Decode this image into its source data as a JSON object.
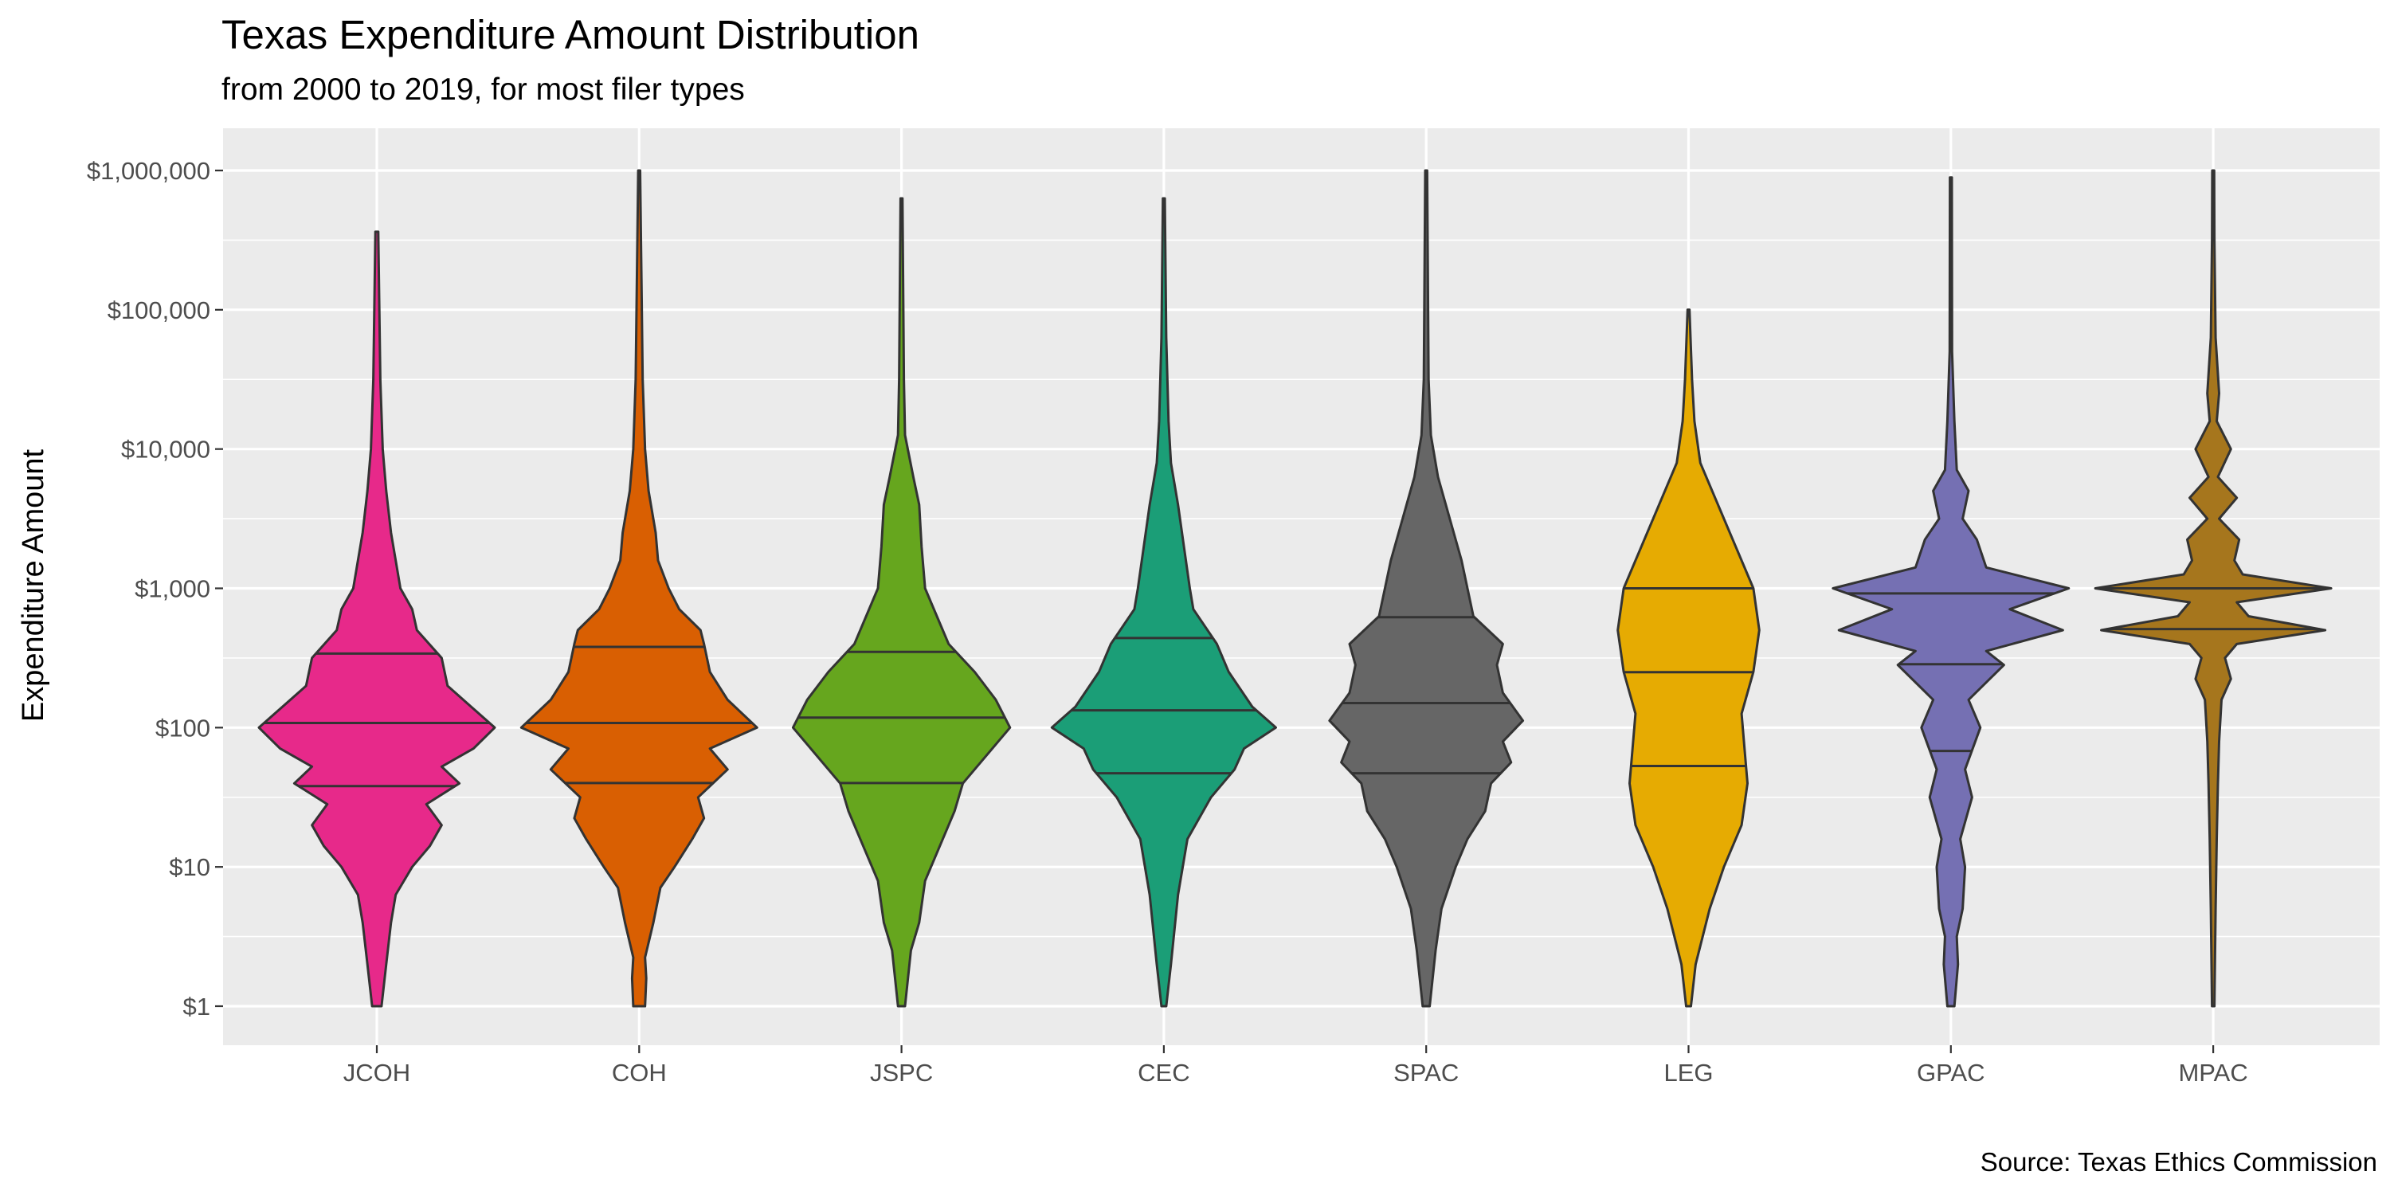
{
  "chart_data": {
    "type": "violin",
    "title": "Texas Expenditure Amount Distribution",
    "subtitle": "from 2000 to 2019, for most filer types",
    "caption": "Source: Texas Ethics Commission",
    "ylabel": "Expenditure Amount",
    "xlabel": "",
    "y_scale": "log10",
    "ylim": [
      0.5,
      2000000
    ],
    "y_ticks": [
      1,
      10,
      100,
      1000,
      10000,
      100000,
      1000000
    ],
    "y_tick_labels": [
      "$1",
      "$10",
      "$100",
      "$1,000",
      "$10,000",
      "$100,000",
      "$1,000,000"
    ],
    "grid": true,
    "legend": "none",
    "categories": [
      "JCOH",
      "COH",
      "JSPC",
      "CEC",
      "SPAC",
      "LEG",
      "GPAC",
      "MPAC"
    ],
    "series": [
      {
        "category": "JCOH",
        "color": "#E7298A",
        "min": 1,
        "max": 360000,
        "q1": 38,
        "median": 108,
        "q3": 340,
        "shape": [
          [
            0,
            0.04
          ],
          [
            0.3,
            0.08
          ],
          [
            0.6,
            0.12
          ],
          [
            0.8,
            0.16
          ],
          [
            1.0,
            0.3
          ],
          [
            1.15,
            0.45
          ],
          [
            1.3,
            0.55
          ],
          [
            1.45,
            0.42
          ],
          [
            1.6,
            0.7
          ],
          [
            1.72,
            0.55
          ],
          [
            1.85,
            0.82
          ],
          [
            2.0,
            1.0
          ],
          [
            2.15,
            0.8
          ],
          [
            2.3,
            0.6
          ],
          [
            2.5,
            0.55
          ],
          [
            2.7,
            0.34
          ],
          [
            2.85,
            0.3
          ],
          [
            3.0,
            0.2
          ],
          [
            3.2,
            0.16
          ],
          [
            3.4,
            0.12
          ],
          [
            3.7,
            0.08
          ],
          [
            4.0,
            0.05
          ],
          [
            4.5,
            0.03
          ],
          [
            5.56,
            0.012
          ]
        ]
      },
      {
        "category": "COH",
        "color": "#D95F02",
        "min": 1,
        "max": 1000000,
        "q1": 40,
        "median": 108,
        "q3": 380,
        "shape": [
          [
            0,
            0.05
          ],
          [
            0.2,
            0.06
          ],
          [
            0.35,
            0.05
          ],
          [
            0.6,
            0.12
          ],
          [
            0.85,
            0.18
          ],
          [
            1.0,
            0.3
          ],
          [
            1.2,
            0.45
          ],
          [
            1.35,
            0.55
          ],
          [
            1.5,
            0.5
          ],
          [
            1.7,
            0.75
          ],
          [
            1.85,
            0.6
          ],
          [
            2.0,
            1.0
          ],
          [
            2.2,
            0.75
          ],
          [
            2.4,
            0.6
          ],
          [
            2.6,
            0.55
          ],
          [
            2.7,
            0.52
          ],
          [
            2.85,
            0.34
          ],
          [
            3.0,
            0.25
          ],
          [
            3.2,
            0.16
          ],
          [
            3.4,
            0.14
          ],
          [
            3.7,
            0.08
          ],
          [
            4.0,
            0.05
          ],
          [
            4.5,
            0.03
          ],
          [
            6.0,
            0.008
          ]
        ]
      },
      {
        "category": "JSPC",
        "color": "#66A61E",
        "min": 1,
        "max": 650000,
        "q1": 40,
        "median": 118,
        "q3": 350,
        "shape": [
          [
            0,
            0.03
          ],
          [
            0.4,
            0.08
          ],
          [
            0.6,
            0.15
          ],
          [
            0.9,
            0.2
          ],
          [
            1.2,
            0.35
          ],
          [
            1.4,
            0.45
          ],
          [
            1.6,
            0.52
          ],
          [
            1.8,
            0.72
          ],
          [
            2.0,
            0.92
          ],
          [
            2.2,
            0.8
          ],
          [
            2.4,
            0.62
          ],
          [
            2.6,
            0.4
          ],
          [
            2.8,
            0.3
          ],
          [
            3.0,
            0.2
          ],
          [
            3.3,
            0.17
          ],
          [
            3.6,
            0.15
          ],
          [
            3.8,
            0.1
          ],
          [
            4.1,
            0.03
          ],
          [
            4.5,
            0.02
          ],
          [
            5.8,
            0.008
          ]
        ]
      },
      {
        "category": "CEC",
        "color": "#1B9E77",
        "min": 1,
        "max": 650000,
        "q1": 47,
        "median": 133,
        "q3": 440,
        "shape": [
          [
            0,
            0.02
          ],
          [
            0.3,
            0.06
          ],
          [
            0.8,
            0.12
          ],
          [
            1.2,
            0.2
          ],
          [
            1.5,
            0.4
          ],
          [
            1.7,
            0.6
          ],
          [
            1.85,
            0.68
          ],
          [
            2.0,
            0.95
          ],
          [
            2.15,
            0.75
          ],
          [
            2.4,
            0.55
          ],
          [
            2.6,
            0.45
          ],
          [
            2.85,
            0.25
          ],
          [
            3.0,
            0.22
          ],
          [
            3.3,
            0.17
          ],
          [
            3.6,
            0.12
          ],
          [
            3.9,
            0.06
          ],
          [
            4.2,
            0.04
          ],
          [
            4.8,
            0.02
          ],
          [
            5.8,
            0.008
          ]
        ]
      },
      {
        "category": "SPAC",
        "color": "#666666",
        "min": 1,
        "max": 1000000,
        "q1": 47,
        "median": 150,
        "q3": 620,
        "shape": [
          [
            0,
            0.03
          ],
          [
            0.4,
            0.08
          ],
          [
            0.7,
            0.13
          ],
          [
            1.0,
            0.25
          ],
          [
            1.2,
            0.35
          ],
          [
            1.4,
            0.5
          ],
          [
            1.6,
            0.55
          ],
          [
            1.75,
            0.72
          ],
          [
            1.9,
            0.65
          ],
          [
            2.05,
            0.82
          ],
          [
            2.25,
            0.65
          ],
          [
            2.45,
            0.6
          ],
          [
            2.6,
            0.65
          ],
          [
            2.8,
            0.4
          ],
          [
            3.0,
            0.35
          ],
          [
            3.2,
            0.3
          ],
          [
            3.5,
            0.2
          ],
          [
            3.8,
            0.1
          ],
          [
            4.1,
            0.04
          ],
          [
            4.5,
            0.02
          ],
          [
            6.0,
            0.008
          ]
        ]
      },
      {
        "category": "LEG",
        "color": "#E6AB02",
        "min": 1,
        "max": 110000,
        "q1": 53,
        "median": 250,
        "q3": 1000,
        "shape": [
          [
            0,
            0.02
          ],
          [
            0.3,
            0.06
          ],
          [
            0.7,
            0.18
          ],
          [
            1.0,
            0.3
          ],
          [
            1.3,
            0.45
          ],
          [
            1.6,
            0.5
          ],
          [
            1.8,
            0.48
          ],
          [
            2.1,
            0.45
          ],
          [
            2.4,
            0.55
          ],
          [
            2.7,
            0.6
          ],
          [
            3.0,
            0.55
          ],
          [
            3.3,
            0.4
          ],
          [
            3.6,
            0.25
          ],
          [
            3.9,
            0.1
          ],
          [
            4.2,
            0.05
          ],
          [
            4.5,
            0.03
          ],
          [
            5.0,
            0.008
          ]
        ]
      },
      {
        "category": "GPAC",
        "color": "#7570B3",
        "min": 1,
        "max": 950000,
        "q1": 68,
        "median": 285,
        "q3": 920,
        "shape": [
          [
            0,
            0.03
          ],
          [
            0.3,
            0.06
          ],
          [
            0.5,
            0.05
          ],
          [
            0.7,
            0.1
          ],
          [
            1.0,
            0.12
          ],
          [
            1.2,
            0.08
          ],
          [
            1.5,
            0.18
          ],
          [
            1.7,
            0.12
          ],
          [
            2.0,
            0.25
          ],
          [
            2.2,
            0.15
          ],
          [
            2.45,
            0.45
          ],
          [
            2.55,
            0.3
          ],
          [
            2.7,
            0.95
          ],
          [
            2.85,
            0.5
          ],
          [
            3.0,
            1.0
          ],
          [
            3.15,
            0.3
          ],
          [
            3.35,
            0.22
          ],
          [
            3.5,
            0.1
          ],
          [
            3.7,
            0.15
          ],
          [
            3.85,
            0.05
          ],
          [
            4.2,
            0.03
          ],
          [
            4.7,
            0.01
          ],
          [
            5.95,
            0.008
          ]
        ]
      },
      {
        "category": "MPAC",
        "color": "#A6761D",
        "min": 1,
        "max": 1000000,
        "q1": 510,
        "median": 1000,
        "q3": 1000,
        "shape": [
          [
            0,
            0.01
          ],
          [
            0.7,
            0.02
          ],
          [
            1.2,
            0.03
          ],
          [
            1.6,
            0.04
          ],
          [
            1.9,
            0.05
          ],
          [
            2.2,
            0.07
          ],
          [
            2.35,
            0.15
          ],
          [
            2.5,
            0.1
          ],
          [
            2.6,
            0.2
          ],
          [
            2.7,
            0.95
          ],
          [
            2.8,
            0.3
          ],
          [
            2.9,
            0.2
          ],
          [
            3.0,
            1.0
          ],
          [
            3.1,
            0.25
          ],
          [
            3.2,
            0.18
          ],
          [
            3.35,
            0.22
          ],
          [
            3.5,
            0.05
          ],
          [
            3.65,
            0.2
          ],
          [
            3.8,
            0.04
          ],
          [
            4.0,
            0.15
          ],
          [
            4.2,
            0.03
          ],
          [
            4.4,
            0.05
          ],
          [
            4.8,
            0.02
          ],
          [
            5.5,
            0.01
          ],
          [
            6.0,
            0.008
          ]
        ]
      }
    ]
  }
}
